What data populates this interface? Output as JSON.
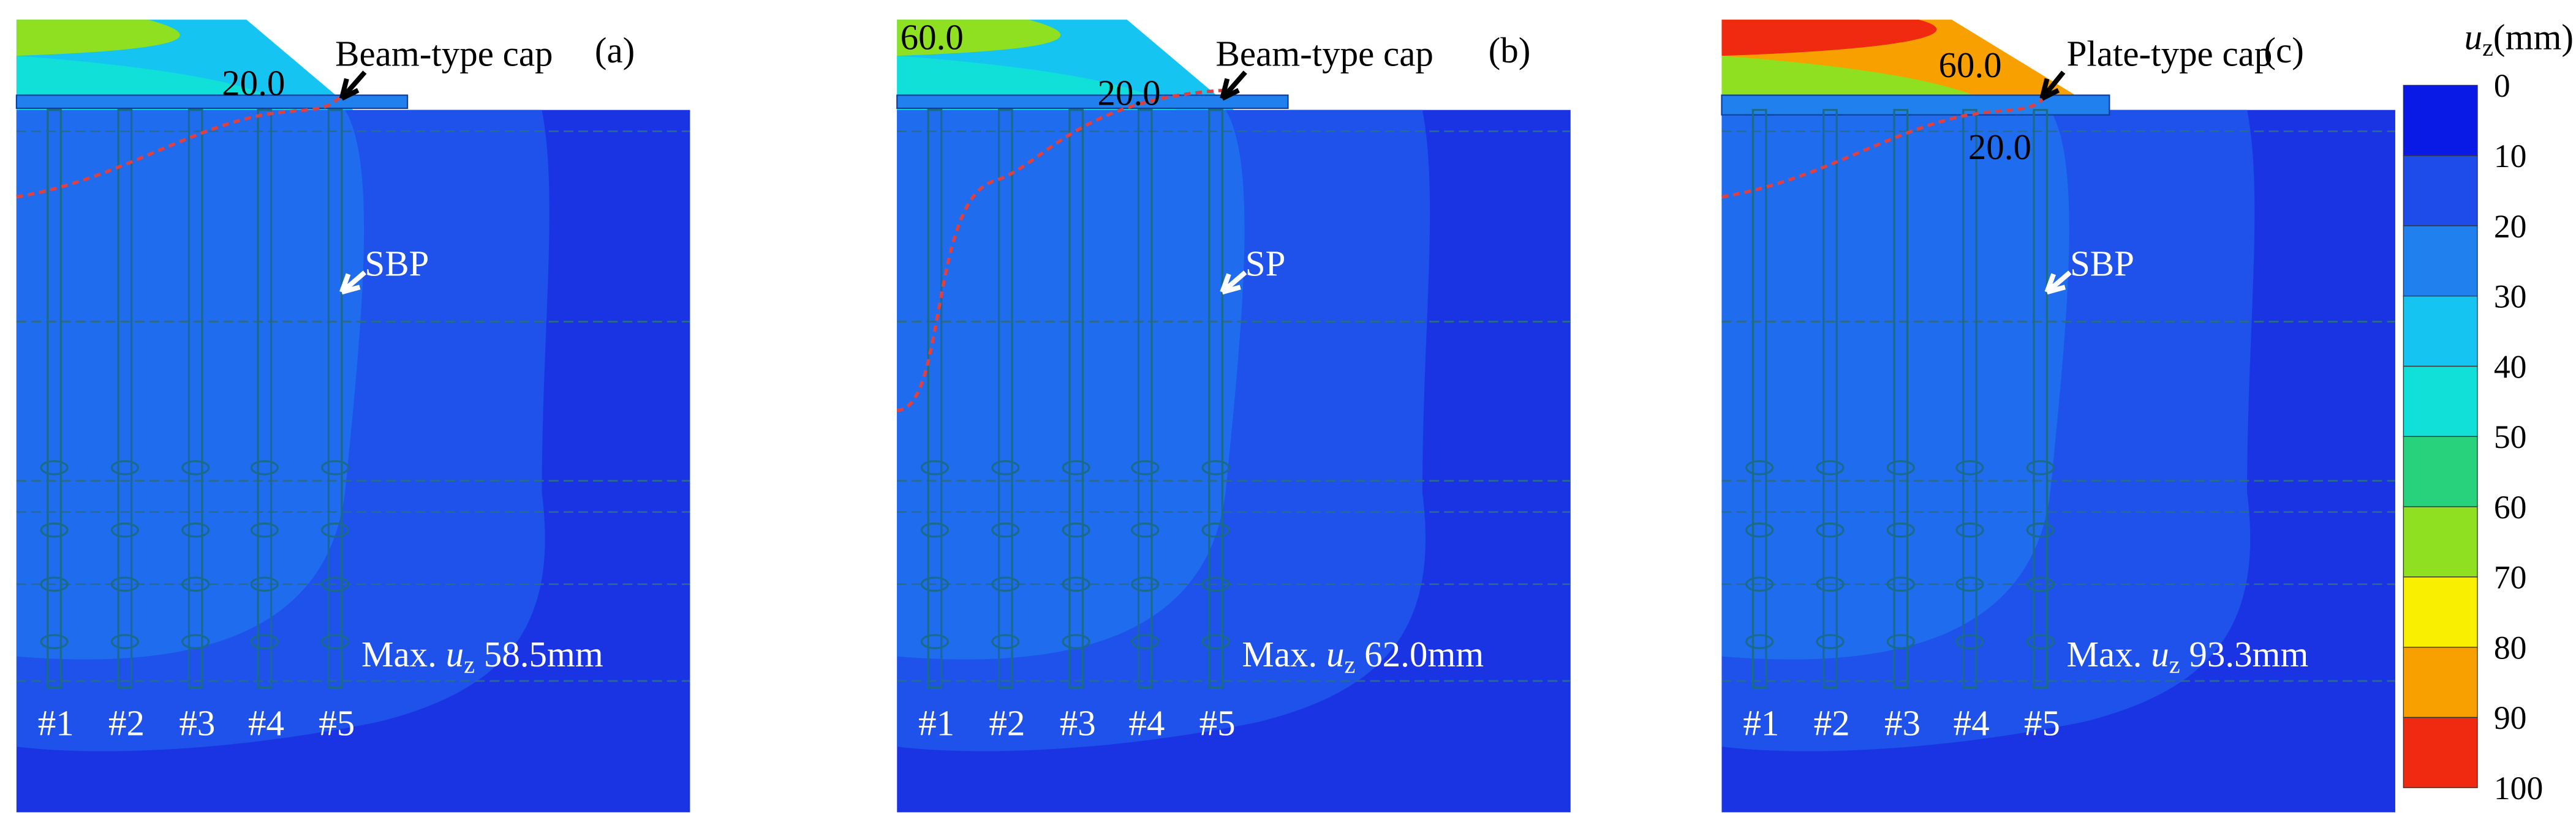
{
  "panels": [
    {
      "label": "(a)",
      "cap": "Beam-type cap",
      "pile": "SBP",
      "contours": [
        "20.0"
      ],
      "max_prefix": "Max.",
      "max_symbol": "u",
      "max_sub": "z",
      "max_value": "58.5mm",
      "piles": [
        "#1",
        "#2",
        "#3",
        "#4",
        "#5"
      ]
    },
    {
      "label": "(b)",
      "cap": "Beam-type cap",
      "pile": "SP",
      "contours": [
        "60.0",
        "20.0"
      ],
      "max_prefix": "Max.",
      "max_symbol": "u",
      "max_sub": "z",
      "max_value": "62.0mm",
      "piles": [
        "#1",
        "#2",
        "#3",
        "#4",
        "#5"
      ]
    },
    {
      "label": "(c)",
      "cap": "Plate-type cap",
      "pile": "SBP",
      "contours": [
        "60.0",
        "20.0"
      ],
      "max_prefix": "Max.",
      "max_symbol": "u",
      "max_sub": "z",
      "max_value": "93.3mm",
      "piles": [
        "#1",
        "#2",
        "#3",
        "#4",
        "#5"
      ]
    }
  ],
  "colorbar": {
    "symbol": "u",
    "sub": "z",
    "unit": "(mm)",
    "ticks": [
      "0",
      "10",
      "20",
      "30",
      "40",
      "50",
      "60",
      "70",
      "80",
      "90",
      "100"
    ],
    "colors": [
      "#0a1ae6",
      "#1d4cea",
      "#1f80ee",
      "#16c4f2",
      "#10e0d8",
      "#28d27c",
      "#8ee020",
      "#f8f000",
      "#f8a000",
      "#f02a10"
    ]
  }
}
